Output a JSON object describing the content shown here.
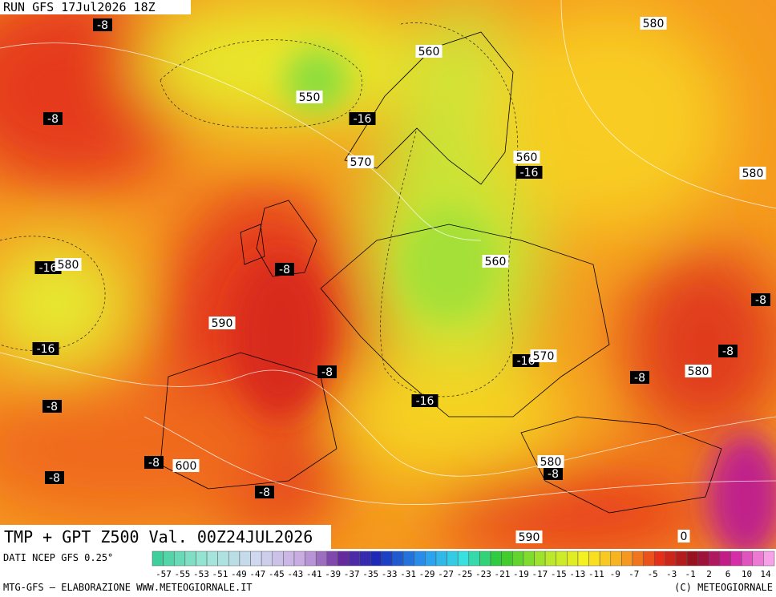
{
  "header": {
    "title": "RUN GFS 17Jul2026 18Z"
  },
  "map": {
    "temperature_labels": [
      -8,
      -8,
      -16,
      -16,
      -16,
      -8,
      -8,
      -16,
      -8,
      -16,
      -8,
      -8,
      -16,
      -8,
      -8,
      -8,
      -8,
      -8
    ],
    "height_labels": [
      550,
      560,
      580,
      570,
      560,
      580,
      580,
      560,
      590,
      570,
      580,
      600,
      580,
      590,
      0
    ]
  },
  "footer": {
    "title": "TMP + GPT Z500 Val. 00Z24JUL2026",
    "source": "DATI NCEP GFS 0.25°",
    "credit": "MTG-GFS — ELABORAZIONE WWW.METEOGIORNALE.IT",
    "copyright": "(C) METEOGIORNALE",
    "scale_labels": [
      -57,
      -55,
      -53,
      -51,
      -49,
      -47,
      -45,
      -43,
      -41,
      -39,
      -37,
      -35,
      -33,
      -31,
      -29,
      -27,
      -25,
      -23,
      -21,
      -19,
      -17,
      -15,
      -13,
      -11,
      -9,
      -7,
      -5,
      -3,
      -1,
      2,
      6,
      10,
      14
    ]
  }
}
